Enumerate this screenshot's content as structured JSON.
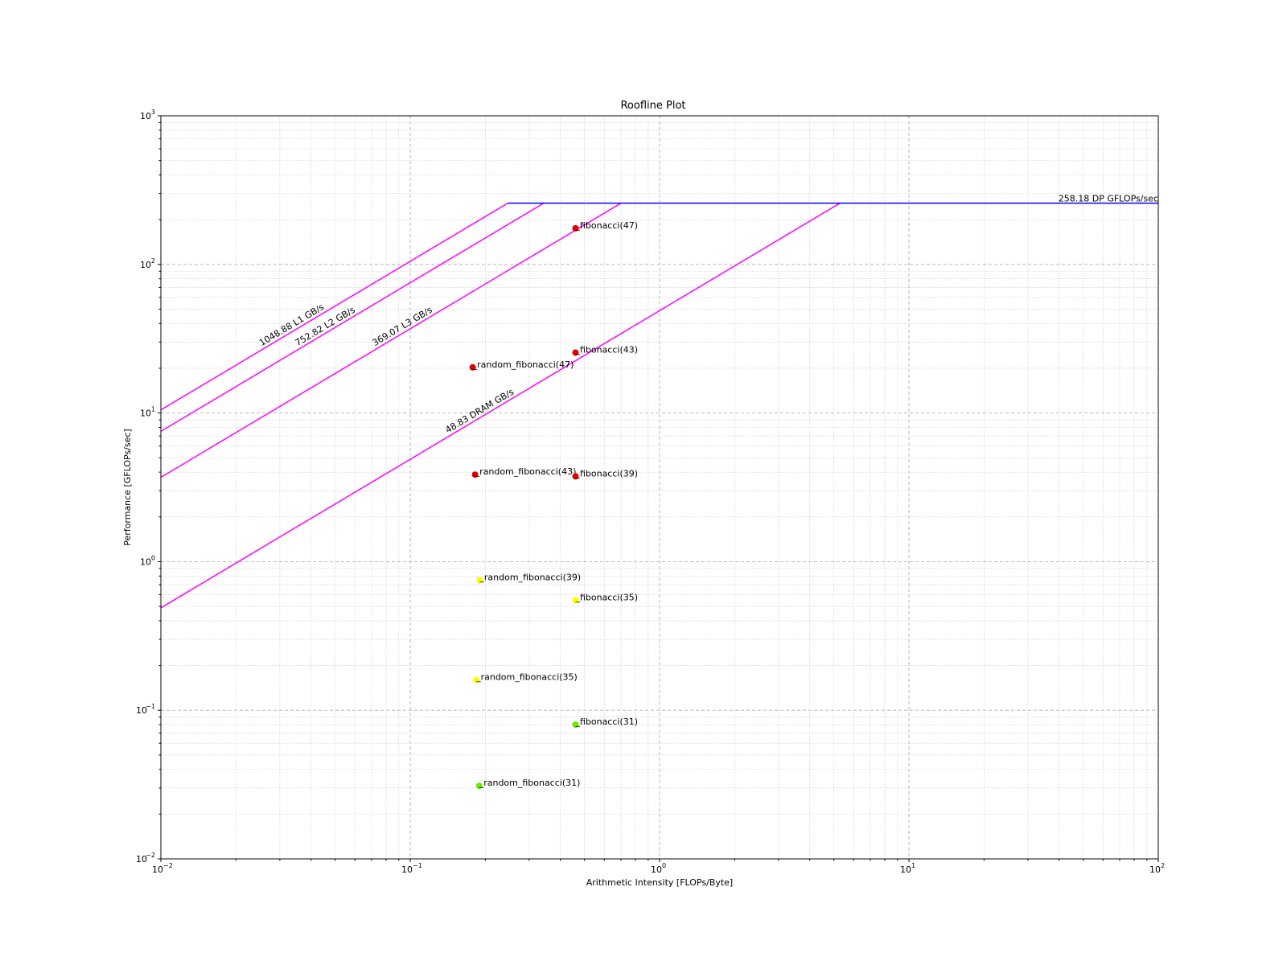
{
  "chart_data": {
    "type": "scatter",
    "title": "Roofline Plot",
    "xlabel": "Arithmetic Intensity [FLOPs/Byte]",
    "ylabel": "Performance [GFLOPs/sec]",
    "xscale": "log",
    "yscale": "log",
    "xlim": [
      0.01,
      100
    ],
    "ylim": [
      0.01,
      1000
    ],
    "grid": true,
    "x_ticks": [
      {
        "base": "10",
        "exp": "−2",
        "value": 0.01
      },
      {
        "base": "10",
        "exp": "−1",
        "value": 0.1
      },
      {
        "base": "10",
        "exp": "0",
        "value": 1
      },
      {
        "base": "10",
        "exp": "1",
        "value": 10
      },
      {
        "base": "10",
        "exp": "2",
        "value": 100
      }
    ],
    "y_ticks": [
      {
        "base": "10",
        "exp": "−2",
        "value": 0.01
      },
      {
        "base": "10",
        "exp": "−1",
        "value": 0.1
      },
      {
        "base": "10",
        "exp": "0",
        "value": 1
      },
      {
        "base": "10",
        "exp": "1",
        "value": 10
      },
      {
        "base": "10",
        "exp": "2",
        "value": 100
      },
      {
        "base": "10",
        "exp": "3",
        "value": 1000
      }
    ],
    "compute_roof": {
      "label": "258.18 DP GFLOPs/sec",
      "value": 258.18,
      "color": "#0000ff"
    },
    "memory_roofs": [
      {
        "label": "1048.88 L1 GB/s",
        "bandwidth": 1048.88,
        "color": "#ff00ff"
      },
      {
        "label": "752.82 L2 GB/s",
        "bandwidth": 752.82,
        "color": "#ff00ff"
      },
      {
        "label": "369.07 L3 GB/s",
        "bandwidth": 369.07,
        "color": "#ff00ff"
      },
      {
        "label": "48.83 DRAM GB/s",
        "bandwidth": 48.83,
        "color": "#ff00ff"
      }
    ],
    "points": [
      {
        "label": "_fibonacci(47)",
        "x": 0.46,
        "y": 175,
        "color": "#e00000"
      },
      {
        "label": "_fibonacci(43)",
        "x": 0.46,
        "y": 25.5,
        "color": "#e00000"
      },
      {
        "label": "_random_fibonacci(47)",
        "x": 0.178,
        "y": 20.3,
        "color": "#e00000"
      },
      {
        "label": "_random_fibonacci(43)",
        "x": 0.182,
        "y": 3.85,
        "color": "#e00000"
      },
      {
        "label": "_fibonacci(39)",
        "x": 0.46,
        "y": 3.75,
        "color": "#e00000"
      },
      {
        "label": "_random_fibonacci(39)",
        "x": 0.19,
        "y": 0.75,
        "color": "#ffff00"
      },
      {
        "label": "_fibonacci(35)",
        "x": 0.46,
        "y": 0.55,
        "color": "#ffff00"
      },
      {
        "label": "_random_fibonacci(35)",
        "x": 0.184,
        "y": 0.16,
        "color": "#ffff00"
      },
      {
        "label": "_fibonacci(31)",
        "x": 0.46,
        "y": 0.08,
        "color": "#66ee00"
      },
      {
        "label": "_random_fibonacci(31)",
        "x": 0.189,
        "y": 0.031,
        "color": "#66ee00"
      }
    ]
  }
}
